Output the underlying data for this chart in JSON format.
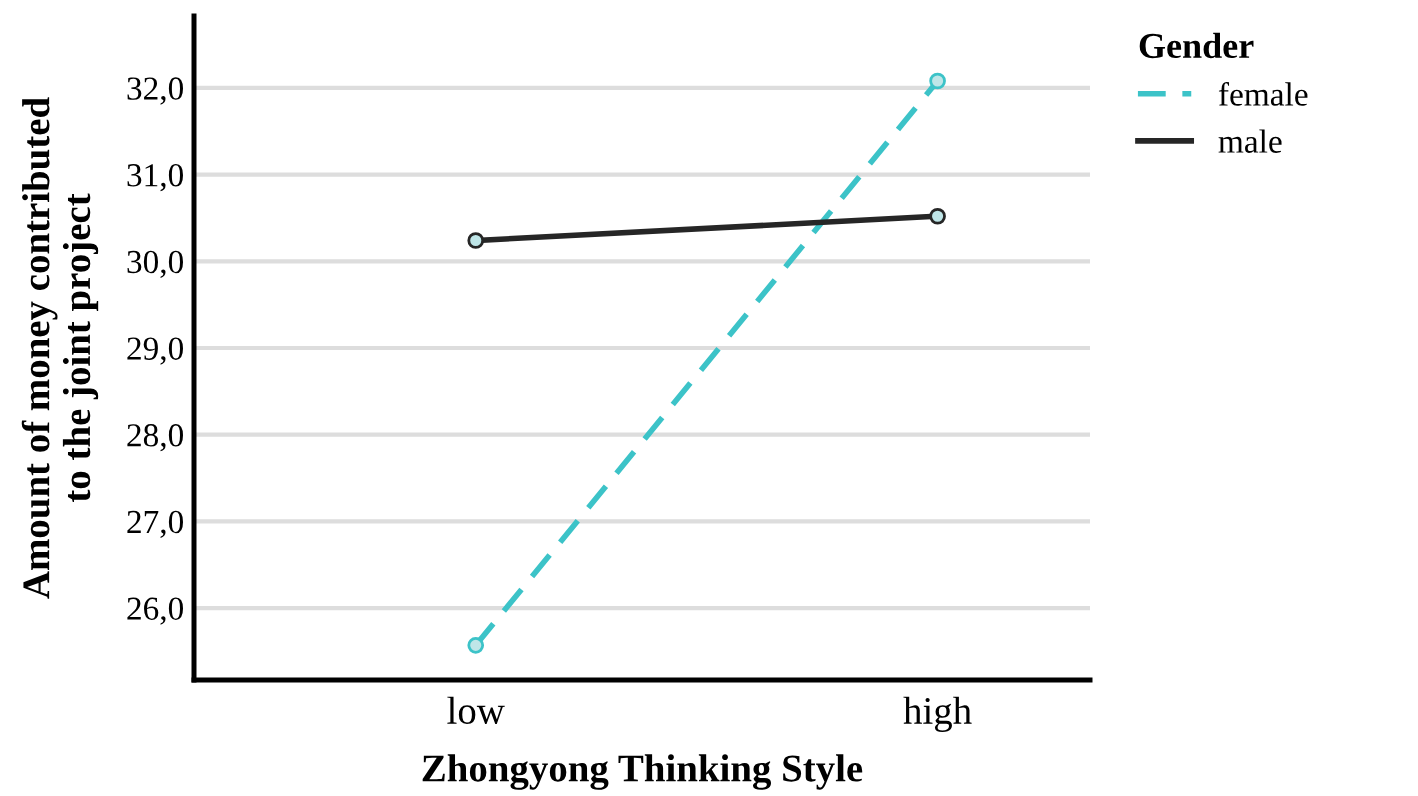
{
  "chart_data": {
    "type": "line",
    "xlabel": "Zhongyong Thinking Style",
    "ylabel": "Amount of money contributed\nto the joint project",
    "categories": [
      "low",
      "high"
    ],
    "series": [
      {
        "name": "female",
        "color": "#3cc3c8",
        "values": [
          25.57,
          32.08
        ],
        "line_style": "dashed"
      },
      {
        "name": "male",
        "color": "#262626",
        "values": [
          30.24,
          30.52
        ],
        "line_style": "solid"
      }
    ],
    "legend_title": "Gender",
    "legend": "top right",
    "ylim": [
      25.17,
      32.83
    ],
    "yticks": [
      {
        "value": 26,
        "label": "26,0"
      },
      {
        "value": 27,
        "label": "27,0"
      },
      {
        "value": 28,
        "label": "28,0"
      },
      {
        "value": 29,
        "label": "29,0"
      },
      {
        "value": 30,
        "label": "30,0"
      },
      {
        "value": 31,
        "label": "31,0"
      },
      {
        "value": 32,
        "label": "32,0"
      }
    ],
    "grid": "y",
    "marker": "circle"
  }
}
